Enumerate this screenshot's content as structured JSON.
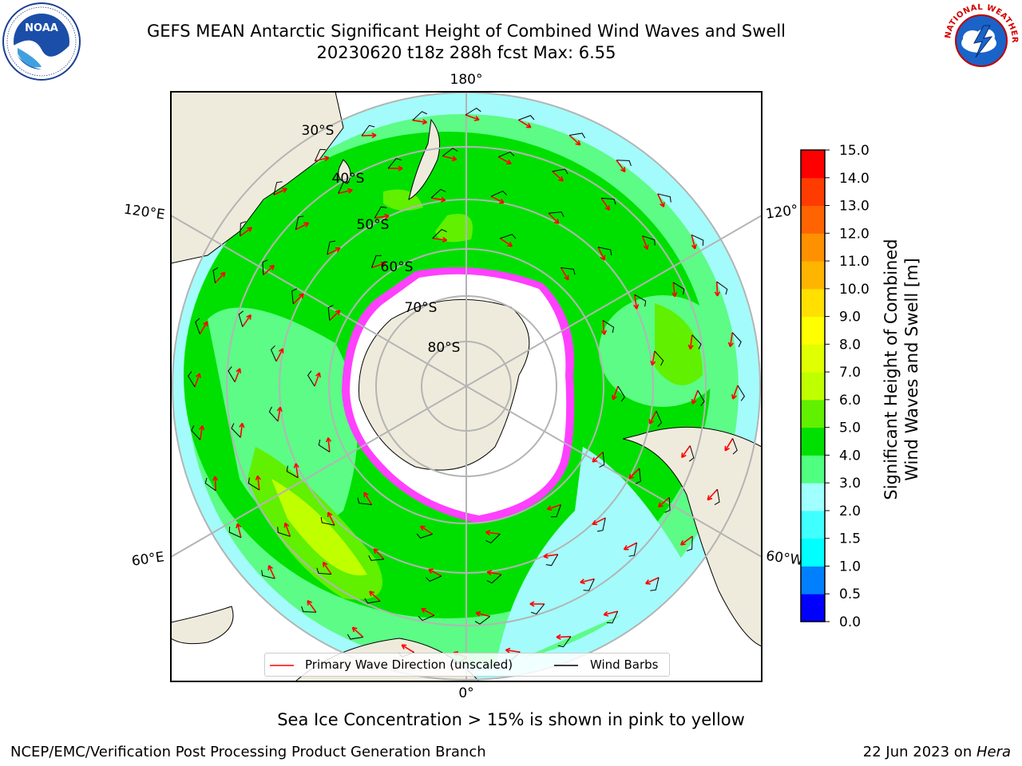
{
  "header": {
    "title_line1": "GEFS MEAN Antarctic Significant Height of Combined Wind Waves and Swell",
    "title_line2": "20230620 t18z 288h fcst   Max: 6.55"
  },
  "logos": {
    "left": {
      "icon": "noaa-logo",
      "text": "NOAA"
    },
    "right": {
      "icon": "nws-logo",
      "text": "NATIONAL WEATHER SERVICE"
    }
  },
  "map": {
    "projection": "south-polar-stereographic",
    "colors": {
      "land": "#efebdc",
      "ice_free_antarctic": "#ffffff",
      "graticule": "#b4b4b4"
    },
    "longitude_labels": {
      "top": "180°",
      "bottom": "0°",
      "left_upper": "120°E",
      "left_lower": "60°E",
      "right_upper": "120°",
      "right_lower": "60°W"
    },
    "latitude_labels": [
      "30°S",
      "40°S",
      "50°S",
      "60°S",
      "70°S",
      "80°S"
    ],
    "max_wave_height_m": 6.55
  },
  "legend": {
    "items": [
      {
        "label": "Primary Wave Direction (unscaled)",
        "color": "#ff0000"
      },
      {
        "label": "Wind Barbs",
        "color": "#000000"
      }
    ]
  },
  "colorbar": {
    "label_line1": "Significant Height of Combined",
    "label_line2": "Wind Waves and Swell [m]",
    "ticks": [
      "0.0",
      "0.5",
      "1.0",
      "1.5",
      "2.0",
      "3.0",
      "4.0",
      "5.0",
      "6.0",
      "7.0",
      "8.0",
      "9.0",
      "10.0",
      "11.0",
      "12.0",
      "13.0",
      "14.0",
      "15.0"
    ],
    "colors": [
      "#0000ff",
      "#0080ff",
      "#00ffff",
      "#40ffff",
      "#a0ffff",
      "#50ff80",
      "#00e000",
      "#60f000",
      "#c0ff00",
      "#e0ff00",
      "#ffff00",
      "#ffe000",
      "#ffb400",
      "#ff9000",
      "#ff6400",
      "#ff3c00",
      "#ff0000"
    ]
  },
  "note": "Sea Ice Concentration > 15% is shown in pink to yellow",
  "footer": {
    "left": "NCEP/EMC/Verification Post Processing Product Generation Branch",
    "right_prefix": "22 Jun 2023 on ",
    "right_host": "Hera"
  }
}
